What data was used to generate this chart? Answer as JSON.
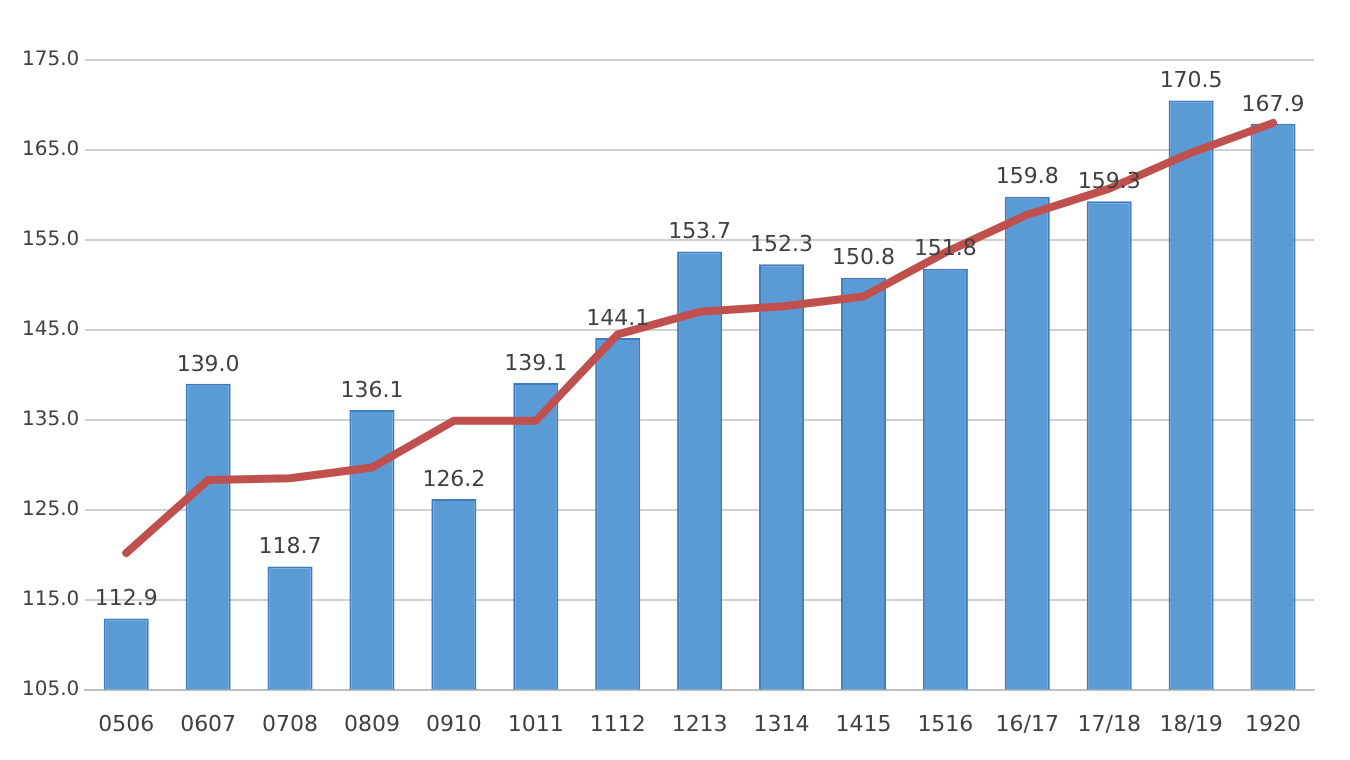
{
  "chart_data": {
    "type": "bar",
    "categories": [
      "0506",
      "0607",
      "0708",
      "0809",
      "0910",
      "1011",
      "1112",
      "1213",
      "1314",
      "1415",
      "1516",
      "16/17",
      "17/18",
      "18/19",
      "1920"
    ],
    "series": [
      {
        "color": "#5b9bd5",
        "values": [
          112.9,
          139.0,
          118.7,
          136.1,
          126.2,
          139.1,
          144.1,
          153.7,
          152.3,
          150.8,
          151.8,
          159.8,
          159.3,
          170.5,
          167.9
        ],
        "value_labels": [
          "112.9",
          "139.0",
          "118.7",
          "136.1",
          "126.2",
          "139.1",
          "144.1",
          "153.7",
          "152.3",
          "150.8",
          "151.8",
          "159.8",
          "159.3",
          "170.5",
          "167.9"
        ]
      },
      {
        "type": "line",
        "color": "#c0504d",
        "values": [
          120.2,
          128.3,
          128.5,
          129.7,
          134.9,
          134.9,
          144.5,
          147.0,
          147.6,
          148.7,
          153.6,
          157.8,
          160.7,
          164.7,
          168.0
        ]
      }
    ],
    "ylim": [
      105,
      175
    ],
    "yticks": [
      {
        "value": 105,
        "label": "105.0"
      },
      {
        "value": 115,
        "label": "115.0"
      },
      {
        "value": 125,
        "label": "125.0"
      },
      {
        "value": 135,
        "label": "135.0"
      },
      {
        "value": 145,
        "label": "145.0"
      },
      {
        "value": 155,
        "label": "155.0"
      },
      {
        "value": 165,
        "label": "165.0"
      },
      {
        "value": 175,
        "label": "175.0"
      }
    ],
    "grid": "y",
    "legend": false,
    "marker": "none",
    "line_style": "solid"
  }
}
